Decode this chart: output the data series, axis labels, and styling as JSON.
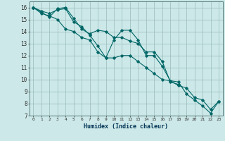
{
  "xlabel": "Humidex (Indice chaleur)",
  "bg_color": "#cce8e8",
  "grid_color": "#99bbbb",
  "line_color": "#006666",
  "xlim": [
    -0.5,
    23.5
  ],
  "ylim": [
    7,
    16.5
  ],
  "xticks": [
    0,
    1,
    2,
    3,
    4,
    5,
    6,
    7,
    8,
    9,
    10,
    11,
    12,
    13,
    14,
    15,
    16,
    17,
    18,
    19,
    20,
    21,
    22,
    23
  ],
  "yticks": [
    7,
    8,
    9,
    10,
    11,
    12,
    13,
    14,
    15,
    16
  ],
  "line1_x": [
    0,
    1,
    2,
    3,
    4,
    5,
    6,
    7,
    8,
    9,
    10,
    11,
    12,
    13,
    14,
    15,
    16,
    17,
    18,
    19,
    20,
    21,
    22,
    23
  ],
  "line1_y": [
    16.0,
    15.7,
    15.5,
    15.8,
    15.9,
    14.8,
    14.4,
    13.7,
    12.8,
    11.8,
    13.3,
    14.1,
    14.1,
    13.3,
    12.0,
    12.0,
    11.1,
    9.9,
    9.8,
    8.8,
    8.3,
    7.8,
    7.2,
    8.2
  ],
  "line2_x": [
    0,
    1,
    2,
    3,
    4,
    5,
    6,
    7,
    8,
    9,
    10,
    11,
    12,
    13,
    14,
    15,
    16,
    17,
    18
  ],
  "line2_y": [
    16.0,
    15.6,
    15.2,
    15.9,
    16.0,
    15.1,
    14.2,
    13.8,
    14.1,
    14.0,
    13.5,
    13.5,
    13.2,
    13.0,
    12.3,
    12.3,
    11.5,
    9.8,
    9.6
  ],
  "line3_x": [
    0,
    1,
    2,
    3,
    4,
    5,
    6,
    7,
    8,
    9,
    10,
    11,
    12,
    13,
    14,
    15,
    16,
    17,
    18,
    19,
    20,
    21,
    22,
    23
  ],
  "line3_y": [
    16.0,
    15.5,
    15.3,
    15.0,
    14.2,
    14.0,
    13.5,
    13.3,
    12.3,
    11.8,
    11.8,
    12.0,
    12.0,
    11.5,
    11.0,
    10.5,
    10.0,
    9.9,
    9.5,
    9.3,
    8.5,
    8.3,
    7.5,
    8.2
  ]
}
